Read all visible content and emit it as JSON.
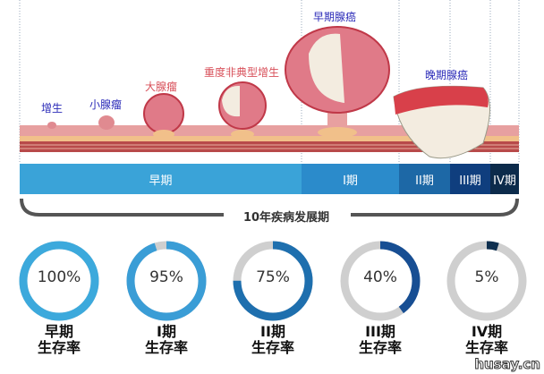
{
  "illustration_labels": {
    "hyperplasia": "增生",
    "small_adenoma": "小腺瘤",
    "large_adenoma": "大腺瘤",
    "severe_atypical_hyperplasia": "重度非典型增生",
    "early_adenocarcinoma": "早期腺癌",
    "late_adenocarcinoma": "晚期腺癌"
  },
  "stages": [
    {
      "label": "早期",
      "color": "#3aa3d8"
    },
    {
      "label": "I期",
      "color": "#2b8bcb"
    },
    {
      "label": "II期",
      "color": "#1d68a6"
    },
    {
      "label": "III期",
      "color": "#0f3e7e"
    },
    {
      "label": "IV期",
      "color": "#0c2b4b"
    }
  ],
  "timeline_label": "10年疾病发展期",
  "survival": [
    {
      "value_text": "100%",
      "percent": 100,
      "stage": "早期",
      "caption": "生存率",
      "color": "#3ca9dc"
    },
    {
      "value_text": "95%",
      "percent": 95,
      "stage": "I期",
      "caption": "生存率",
      "color": "#3a9dd6"
    },
    {
      "value_text": "75%",
      "percent": 75,
      "stage": "II期",
      "caption": "生存率",
      "color": "#1e6fae"
    },
    {
      "value_text": "40%",
      "percent": 40,
      "stage": "III期",
      "caption": "生存率",
      "color": "#174e93"
    },
    {
      "value_text": "5%",
      "percent": 5,
      "stage": "IV期",
      "caption": "生存率",
      "color": "#0e2f4f"
    }
  ],
  "track_color": "#cfcfcf",
  "watermark": "husay.cn"
}
